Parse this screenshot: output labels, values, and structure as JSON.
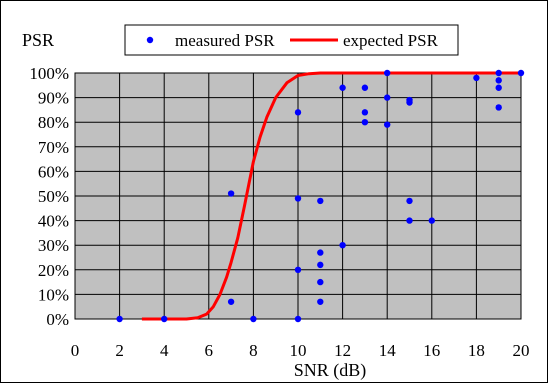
{
  "chart_data": {
    "type": "scatter",
    "ylabel": "PSR",
    "xlabel": "SNR (dB)",
    "xlim": [
      0,
      20
    ],
    "ylim": [
      0,
      100
    ],
    "x_ticks": [
      0,
      2,
      4,
      6,
      8,
      10,
      12,
      14,
      16,
      18,
      20
    ],
    "y_ticks": [
      "0%",
      "10%",
      "20%",
      "30%",
      "40%",
      "50%",
      "60%",
      "70%",
      "80%",
      "90%",
      "100%"
    ],
    "grid": true,
    "plot_background": "#c0c0c0",
    "legend_position": "top",
    "series": [
      {
        "name": "measured PSR",
        "kind": "scatter",
        "color": "#0000ff",
        "points": [
          [
            2,
            0
          ],
          [
            4,
            0
          ],
          [
            7,
            51
          ],
          [
            7,
            7
          ],
          [
            8,
            0
          ],
          [
            10,
            84
          ],
          [
            10,
            49
          ],
          [
            10,
            20
          ],
          [
            10,
            0
          ],
          [
            11,
            48
          ],
          [
            11,
            27
          ],
          [
            11,
            22
          ],
          [
            11,
            15
          ],
          [
            11,
            7
          ],
          [
            12,
            94
          ],
          [
            12,
            30
          ],
          [
            13,
            94
          ],
          [
            13,
            84
          ],
          [
            13,
            80
          ],
          [
            14,
            100
          ],
          [
            14,
            90
          ],
          [
            14,
            79
          ],
          [
            15,
            89
          ],
          [
            15,
            88
          ],
          [
            15,
            48
          ],
          [
            15,
            40
          ],
          [
            16,
            40
          ],
          [
            18,
            98
          ],
          [
            19,
            100
          ],
          [
            19,
            97
          ],
          [
            19,
            94
          ],
          [
            19,
            86
          ],
          [
            20,
            100
          ]
        ]
      },
      {
        "name": "expected PSR",
        "kind": "line",
        "color": "#ff0000",
        "points": [
          [
            3,
            0
          ],
          [
            4,
            0
          ],
          [
            5,
            0
          ],
          [
            5.5,
            0.5
          ],
          [
            5.9,
            2
          ],
          [
            6.2,
            5
          ],
          [
            6.5,
            10
          ],
          [
            6.8,
            17
          ],
          [
            7,
            23
          ],
          [
            7.3,
            33
          ],
          [
            7.6,
            46
          ],
          [
            8,
            64
          ],
          [
            8.3,
            74
          ],
          [
            8.6,
            82
          ],
          [
            9,
            90
          ],
          [
            9.5,
            96
          ],
          [
            10,
            99
          ],
          [
            10.5,
            99.7
          ],
          [
            11,
            100
          ],
          [
            15,
            100
          ],
          [
            20,
            100
          ]
        ]
      }
    ]
  }
}
